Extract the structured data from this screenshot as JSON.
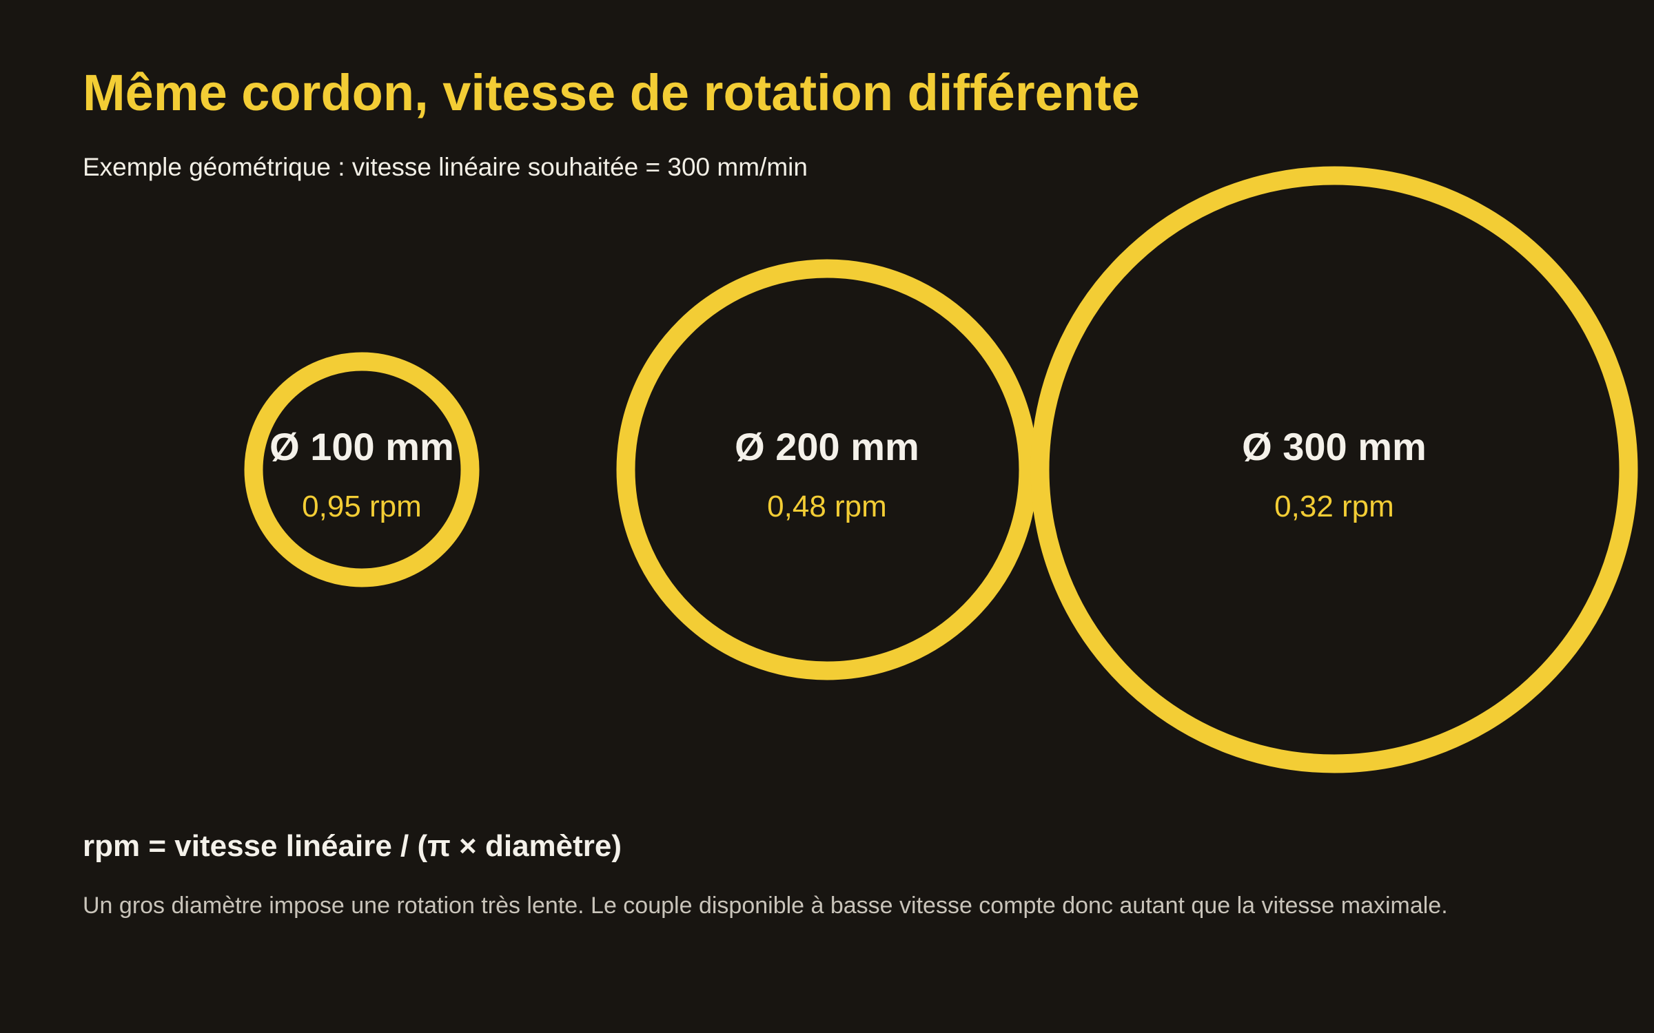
{
  "title": "Même cordon, vitesse de rotation différente",
  "subtitle": "Exemple géométrique : vitesse linéaire souhaitée = 300 mm/min",
  "colors": {
    "background": "#181511",
    "accent": "#f3cd35",
    "text": "#f4f1ea",
    "muted_text": "#c9c4ba"
  },
  "rings": [
    {
      "diameter_label": "Ø 100 mm",
      "speed_label": "0,95 rpm",
      "diameter_mm": 100,
      "rpm": 0.95
    },
    {
      "diameter_label": "Ø 200 mm",
      "speed_label": "0,48 rpm",
      "diameter_mm": 200,
      "rpm": 0.48
    },
    {
      "diameter_label": "Ø 300 mm",
      "speed_label": "0,32 rpm",
      "diameter_mm": 300,
      "rpm": 0.32
    }
  ],
  "formula": "rpm = vitesse linéaire / (π × diamètre)",
  "note": "Un gros diamètre impose une rotation très lente. Le couple disponible à basse vitesse compte donc autant que la vitesse maximale."
}
